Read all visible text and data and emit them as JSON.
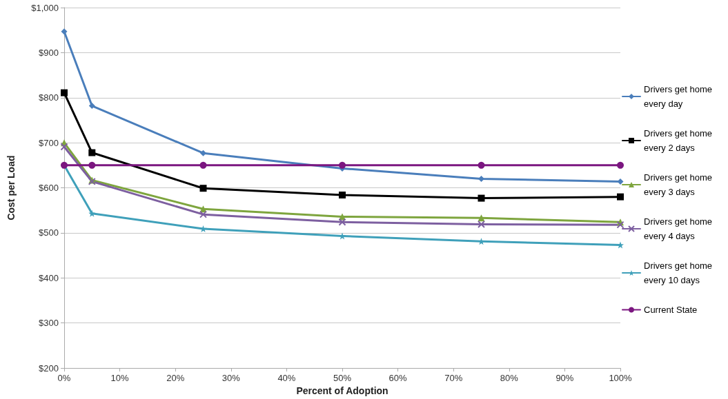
{
  "chart_data": {
    "type": "line",
    "xlabel": "Percent of Adoption",
    "ylabel": "Cost per Load",
    "x": [
      0,
      5,
      25,
      50,
      75,
      100
    ],
    "series": [
      {
        "name": "Drivers get home every day",
        "color": "#4a7ebb",
        "marker": "diamond",
        "values": [
          947,
          782,
          677,
          643,
          620,
          614
        ]
      },
      {
        "name": "Drivers get home every 2 days",
        "color": "#000000",
        "marker": "square",
        "values": [
          811,
          678,
          599,
          584,
          577,
          580
        ]
      },
      {
        "name": "Drivers get home every 3 days",
        "color": "#7ea53e",
        "marker": "triangle",
        "values": [
          700,
          617,
          553,
          536,
          533,
          524
        ]
      },
      {
        "name": "Drivers get home every 4 days",
        "color": "#7d5fa0",
        "marker": "cross",
        "values": [
          691,
          614,
          541,
          524,
          519,
          518
        ]
      },
      {
        "name": "Drivers get home every 10 days",
        "color": "#3fa0ba",
        "marker": "star",
        "values": [
          650,
          543,
          509,
          493,
          481,
          473
        ]
      },
      {
        "name": "Current State",
        "color": "#7b1680",
        "marker": "circle",
        "values": [
          650,
          650,
          650,
          650,
          650,
          650
        ]
      }
    ],
    "xlim": [
      0,
      100
    ],
    "xticks": [
      {
        "value": 0,
        "label": "0%"
      },
      {
        "value": 10,
        "label": "10%"
      },
      {
        "value": 20,
        "label": "20%"
      },
      {
        "value": 30,
        "label": "30%"
      },
      {
        "value": 40,
        "label": "40%"
      },
      {
        "value": 50,
        "label": "50%"
      },
      {
        "value": 60,
        "label": "60%"
      },
      {
        "value": 70,
        "label": "70%"
      },
      {
        "value": 80,
        "label": "80%"
      },
      {
        "value": 90,
        "label": "90%"
      },
      {
        "value": 100,
        "label": "100%"
      }
    ],
    "ylim": [
      200,
      1000
    ],
    "yticks": [
      {
        "value": 200,
        "label": "$200"
      },
      {
        "value": 300,
        "label": "$300"
      },
      {
        "value": 400,
        "label": "$400"
      },
      {
        "value": 500,
        "label": "$500"
      },
      {
        "value": 600,
        "label": "$600"
      },
      {
        "value": 700,
        "label": "$700"
      },
      {
        "value": 800,
        "label": "$800"
      },
      {
        "value": 900,
        "label": "$900"
      },
      {
        "value": 1000,
        "label": "$1,000"
      }
    ],
    "grid": "y",
    "legend": "right",
    "line_style": "solid"
  }
}
